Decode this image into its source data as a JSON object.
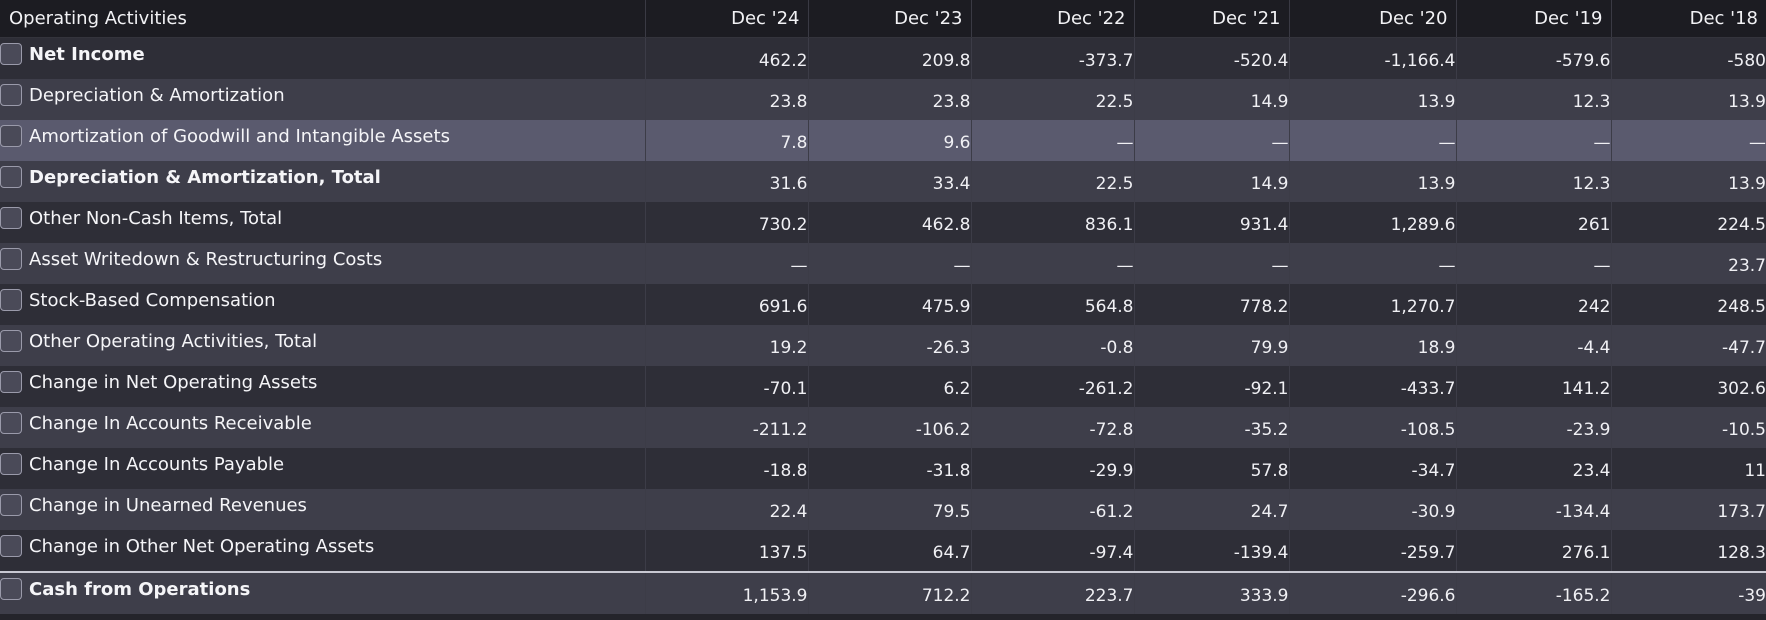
{
  "table": {
    "header_label": "Operating Activities",
    "years": [
      "Dec '24",
      "Dec '23",
      "Dec '22",
      "Dec '21",
      "Dec '20",
      "Dec '19",
      "Dec '18"
    ],
    "rows": [
      {
        "label": "Net Income",
        "bold": true,
        "values": [
          "462.2",
          "209.8",
          "-373.7",
          "-520.4",
          "-1,166.4",
          "-579.6",
          "-580"
        ]
      },
      {
        "label": "Depreciation & Amortization",
        "bold": false,
        "values": [
          "23.8",
          "23.8",
          "22.5",
          "14.9",
          "13.9",
          "12.3",
          "13.9"
        ]
      },
      {
        "label": "Amortization of Goodwill and Intangible Assets",
        "bold": false,
        "highlighted": true,
        "values": [
          "7.8",
          "9.6",
          "—",
          "—",
          "—",
          "—",
          "—"
        ]
      },
      {
        "label": "Depreciation & Amortization, Total",
        "bold": true,
        "values": [
          "31.6",
          "33.4",
          "22.5",
          "14.9",
          "13.9",
          "12.3",
          "13.9"
        ]
      },
      {
        "label": "Other Non-Cash Items, Total",
        "bold": false,
        "values": [
          "730.2",
          "462.8",
          "836.1",
          "931.4",
          "1,289.6",
          "261",
          "224.5"
        ]
      },
      {
        "label": "Asset Writedown & Restructuring Costs",
        "bold": false,
        "values": [
          "—",
          "—",
          "—",
          "—",
          "—",
          "—",
          "23.7"
        ]
      },
      {
        "label": "Stock-Based Compensation",
        "bold": false,
        "values": [
          "691.6",
          "475.9",
          "564.8",
          "778.2",
          "1,270.7",
          "242",
          "248.5"
        ]
      },
      {
        "label": "Other Operating Activities, Total",
        "bold": false,
        "values": [
          "19.2",
          "-26.3",
          "-0.8",
          "79.9",
          "18.9",
          "-4.4",
          "-47.7"
        ]
      },
      {
        "label": "Change in Net Operating Assets",
        "bold": false,
        "values": [
          "-70.1",
          "6.2",
          "-261.2",
          "-92.1",
          "-433.7",
          "141.2",
          "302.6"
        ]
      },
      {
        "label": "Change In Accounts Receivable",
        "bold": false,
        "values": [
          "-211.2",
          "-106.2",
          "-72.8",
          "-35.2",
          "-108.5",
          "-23.9",
          "-10.5"
        ]
      },
      {
        "label": "Change In Accounts Payable",
        "bold": false,
        "values": [
          "-18.8",
          "-31.8",
          "-29.9",
          "57.8",
          "-34.7",
          "23.4",
          "11"
        ]
      },
      {
        "label": "Change in Unearned Revenues",
        "bold": false,
        "values": [
          "22.4",
          "79.5",
          "-61.2",
          "24.7",
          "-30.9",
          "-134.4",
          "173.7"
        ]
      },
      {
        "label": "Change in Other Net Operating Assets",
        "bold": false,
        "values": [
          "137.5",
          "64.7",
          "-97.4",
          "-139.4",
          "-259.7",
          "276.1",
          "128.3"
        ]
      },
      {
        "label": "Cash from Operations",
        "bold": true,
        "total": true,
        "values": [
          "1,153.9",
          "712.2",
          "223.7",
          "333.9",
          "-296.6",
          "-165.2",
          "-39"
        ]
      }
    ]
  },
  "colors": {
    "background": "#24242b",
    "header_bg": "#1c1c22",
    "row_dark": "#2e2e37",
    "row_light": "#3e3e4a",
    "row_highlight": "#5a5a6e",
    "text": "#f2f2f5"
  },
  "icons": {
    "row_toggle": "checkbox-icon"
  }
}
